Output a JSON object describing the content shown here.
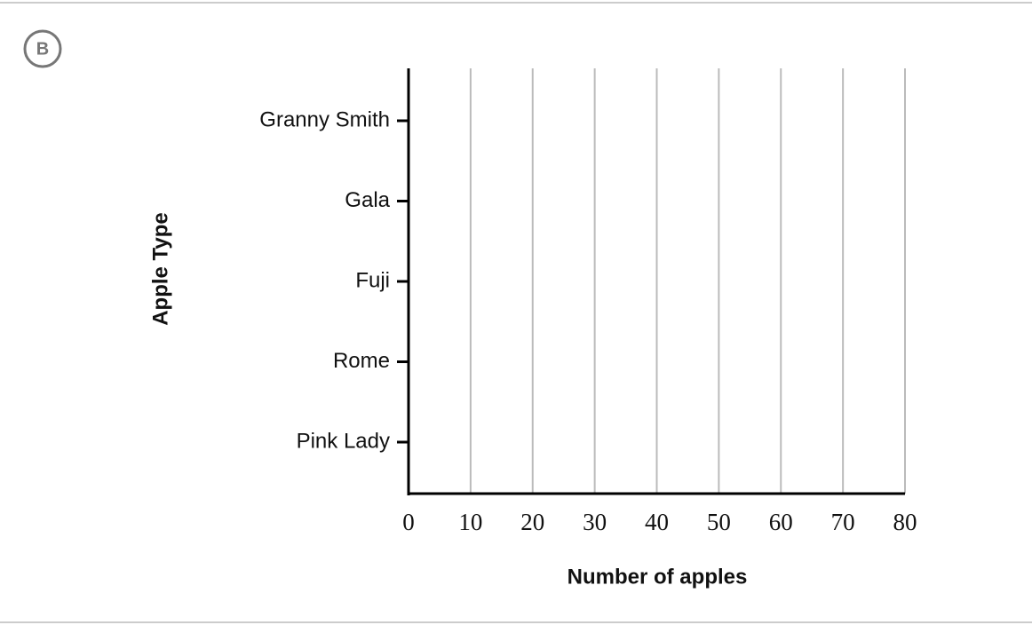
{
  "option_label": "B",
  "chart_data": {
    "type": "bar",
    "orientation": "horizontal",
    "categories": [
      "Granny Smith",
      "Gala",
      "Fuji",
      "Rome",
      "Pink Lady"
    ],
    "xlabel": "Number of apples",
    "ylabel": "Apple Type",
    "xlim": [
      0,
      80
    ],
    "xticks": [
      0,
      10,
      20,
      30,
      40,
      50,
      60,
      70,
      80
    ],
    "grid": true
  }
}
